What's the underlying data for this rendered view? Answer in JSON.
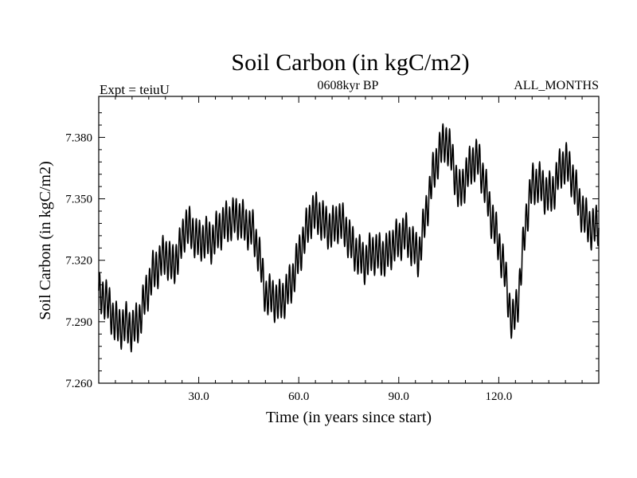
{
  "chart_data": {
    "type": "line",
    "title": "Soil Carbon (in kgC/m2)",
    "subtitle": "0608kyr BP",
    "left_label": "Expt = teiuU",
    "right_label": "ALL_MONTHS",
    "xlabel": "Time (in years since start)",
    "ylabel": "Soil Carbon (in kgC/m2)",
    "xlim": [
      0,
      150
    ],
    "ylim": [
      7.26,
      7.4
    ],
    "xticks": [
      30,
      60,
      90,
      120
    ],
    "xtick_labels": [
      "30.0",
      "60.0",
      "90.0",
      "120.0"
    ],
    "yticks": [
      7.26,
      7.29,
      7.32,
      7.35,
      7.38
    ],
    "ytick_labels": [
      "7.260",
      "7.290",
      "7.320",
      "7.350",
      "7.380"
    ],
    "samples_per_year": 12,
    "seasonal_amplitude": 0.009,
    "series": [
      {
        "name": "Soil Carbon",
        "x": [
          0,
          2,
          4,
          6,
          8,
          10,
          12,
          14,
          16,
          18,
          20,
          22,
          24,
          26,
          28,
          30,
          32,
          34,
          36,
          38,
          40,
          42,
          44,
          46,
          48,
          50,
          52,
          54,
          56,
          58,
          60,
          62,
          64,
          66,
          68,
          70,
          72,
          74,
          76,
          78,
          80,
          82,
          84,
          86,
          88,
          90,
          92,
          94,
          96,
          98,
          100,
          102,
          104,
          106,
          108,
          110,
          112,
          114,
          116,
          118,
          120,
          122,
          124,
          126,
          128,
          130,
          132,
          134,
          136,
          138,
          140,
          142,
          144,
          146,
          148,
          150
        ],
        "values": [
          7.303,
          7.302,
          7.293,
          7.287,
          7.289,
          7.286,
          7.29,
          7.302,
          7.313,
          7.318,
          7.323,
          7.317,
          7.323,
          7.337,
          7.334,
          7.329,
          7.331,
          7.329,
          7.335,
          7.338,
          7.34,
          7.341,
          7.337,
          7.335,
          7.324,
          7.303,
          7.302,
          7.299,
          7.303,
          7.31,
          7.322,
          7.333,
          7.343,
          7.342,
          7.337,
          7.335,
          7.34,
          7.335,
          7.327,
          7.322,
          7.319,
          7.324,
          7.323,
          7.322,
          7.327,
          7.33,
          7.333,
          7.327,
          7.322,
          7.341,
          7.36,
          7.372,
          7.379,
          7.37,
          7.352,
          7.36,
          7.368,
          7.369,
          7.355,
          7.34,
          7.328,
          7.312,
          7.288,
          7.303,
          7.338,
          7.357,
          7.358,
          7.353,
          7.352,
          7.363,
          7.368,
          7.361,
          7.348,
          7.34,
          7.335,
          7.338
        ]
      }
    ]
  }
}
